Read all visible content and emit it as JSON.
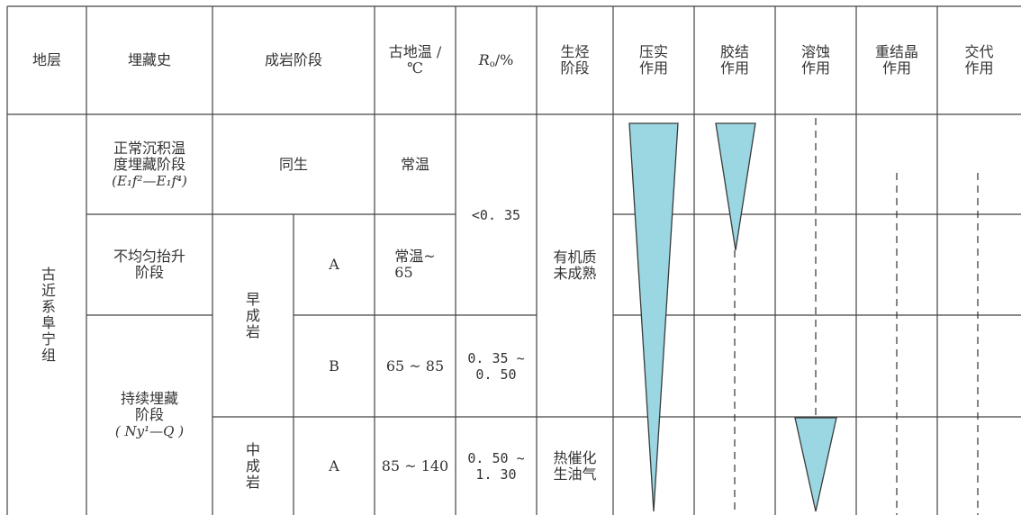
{
  "header": {
    "formation": "地层",
    "burial_history": "埋藏史",
    "diagenetic_stage": "成岩阶段",
    "paleotemp": "古地温 /\n℃",
    "ro_symbol": "R",
    "ro_sub": "o",
    "ro_unit": "/%",
    "hc_generation": "生烃\n阶段",
    "compaction": "压实\n作用",
    "cementation": "胶结\n作用",
    "dissolution": "溶蚀\n作用",
    "recrystallization": "重结晶\n作用",
    "metasomatism": "交代\n作用"
  },
  "body": {
    "formation_name": "古近系阜宁组",
    "burial": {
      "normal": "正常沉积温\n度埋藏阶段",
      "normal_formula": "(E₁f²—E₁f⁴)",
      "uplift": "不均匀抬升\n阶段",
      "continuous": "持续埋藏\n阶段",
      "continuous_formula": "( Ny¹—Q )"
    },
    "stage": {
      "syngenetic": "同生",
      "early": "早\n成\n岩",
      "middle": "中\n成\n岩",
      "sub_a1": "A",
      "sub_b": "B",
      "sub_a2": "A"
    },
    "temperature": {
      "t1": "常温",
      "t2": "常温~\n65",
      "t3": "65 ~ 85",
      "t4": "85 ~ 140"
    },
    "ro": {
      "r1": "<0. 35",
      "r2": "0. 35 ~\n0. 50",
      "r3": "0. 50 ~\n1. 30"
    },
    "hc": {
      "h1": "有机质\n未成熟",
      "h2": "热催化\n生油气"
    }
  },
  "colors": {
    "wedge_fill": "#9ad7e2",
    "wedge_stroke": "#3a3a3a",
    "grid": "#444444",
    "text": "#333333"
  }
}
